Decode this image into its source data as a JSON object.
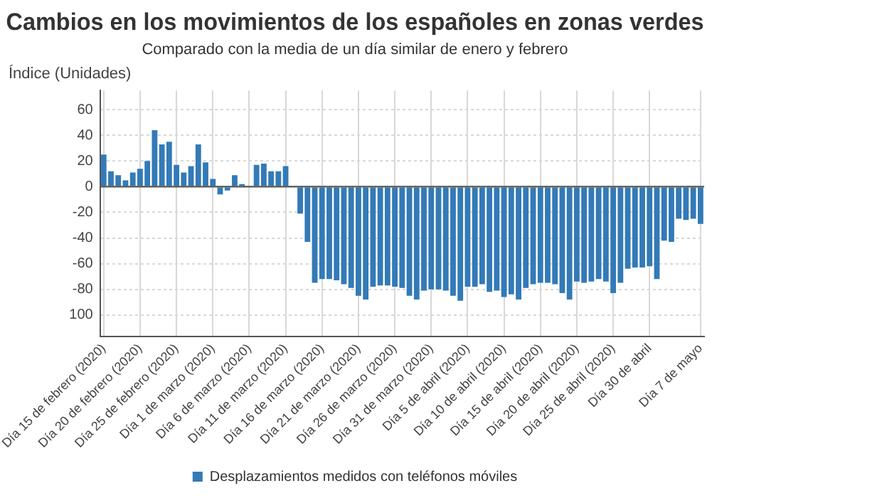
{
  "chart_data": {
    "type": "bar",
    "title": "Cambios en los movimientos de los españoles en zonas verdes",
    "subtitle": "Comparado con la media de un día similar de enero y febrero",
    "ylabel": "Índice (Unidades)",
    "categories": [
      "Día 15 de febrero (2020)",
      null,
      null,
      null,
      null,
      "Día 20 de febrero (2020)",
      null,
      null,
      null,
      null,
      "Día 25 de febrero (2020)",
      null,
      null,
      null,
      null,
      "Día 1 de marzo (2020)",
      null,
      null,
      null,
      null,
      "Día 6 de marzo (2020)",
      null,
      null,
      null,
      null,
      "Día 11 de marzo (2020)",
      null,
      null,
      null,
      null,
      "Día 16 de marzo (2020)",
      null,
      null,
      null,
      null,
      "Día 21 de marzo (2020)",
      null,
      null,
      null,
      null,
      "Día 26 de marzo (2020)",
      null,
      null,
      null,
      null,
      "Día 31 de marzo (2020)",
      null,
      null,
      null,
      null,
      "Día 5 de abril (2020)",
      null,
      null,
      null,
      null,
      "Día 10 de abril (2020)",
      null,
      null,
      null,
      null,
      "Día 15 de abril (2020)",
      null,
      null,
      null,
      null,
      "Día 20 de abril (2020)",
      null,
      null,
      null,
      null,
      "Día 25 de abril (2020)",
      null,
      null,
      null,
      null,
      "Día 30 de abril",
      null,
      null,
      null,
      null,
      null,
      null,
      "Día 7 de mayo"
    ],
    "series": [
      {
        "name": "Desplazamientos medidos con teléfonos móviles",
        "color": "#337ab7",
        "values": [
          25,
          12,
          9,
          5,
          11,
          14,
          20,
          44,
          33,
          35,
          17,
          11,
          16,
          33,
          19,
          6,
          -6,
          -3,
          9,
          2,
          0,
          17,
          18,
          12,
          12,
          16,
          0,
          -21,
          -43,
          -75,
          -72,
          -72,
          -73,
          -76,
          -79,
          -85,
          -88,
          -78,
          -77,
          -77,
          -78,
          -79,
          -85,
          -88,
          -81,
          -80,
          -80,
          -81,
          -85,
          -89,
          -78,
          -78,
          -76,
          -82,
          -81,
          -86,
          -84,
          -88,
          -79,
          -76,
          -75,
          -75,
          -76,
          -83,
          -88,
          -74,
          -75,
          -74,
          -72,
          -74,
          -83,
          -75,
          -64,
          -63,
          -63,
          -62,
          -72,
          -42,
          -43,
          -25,
          -26,
          -25,
          -29
        ]
      }
    ],
    "ylim": [
      -117,
      75
    ],
    "yticks": [
      60,
      40,
      20,
      0,
      -20,
      -40,
      -60,
      -80,
      {
        "value": -100,
        "label": "100"
      }
    ],
    "ref_lines": [
      {
        "axis": "y",
        "value": 0,
        "color": "#555555"
      }
    ],
    "grid": true,
    "legend": "bottom"
  }
}
